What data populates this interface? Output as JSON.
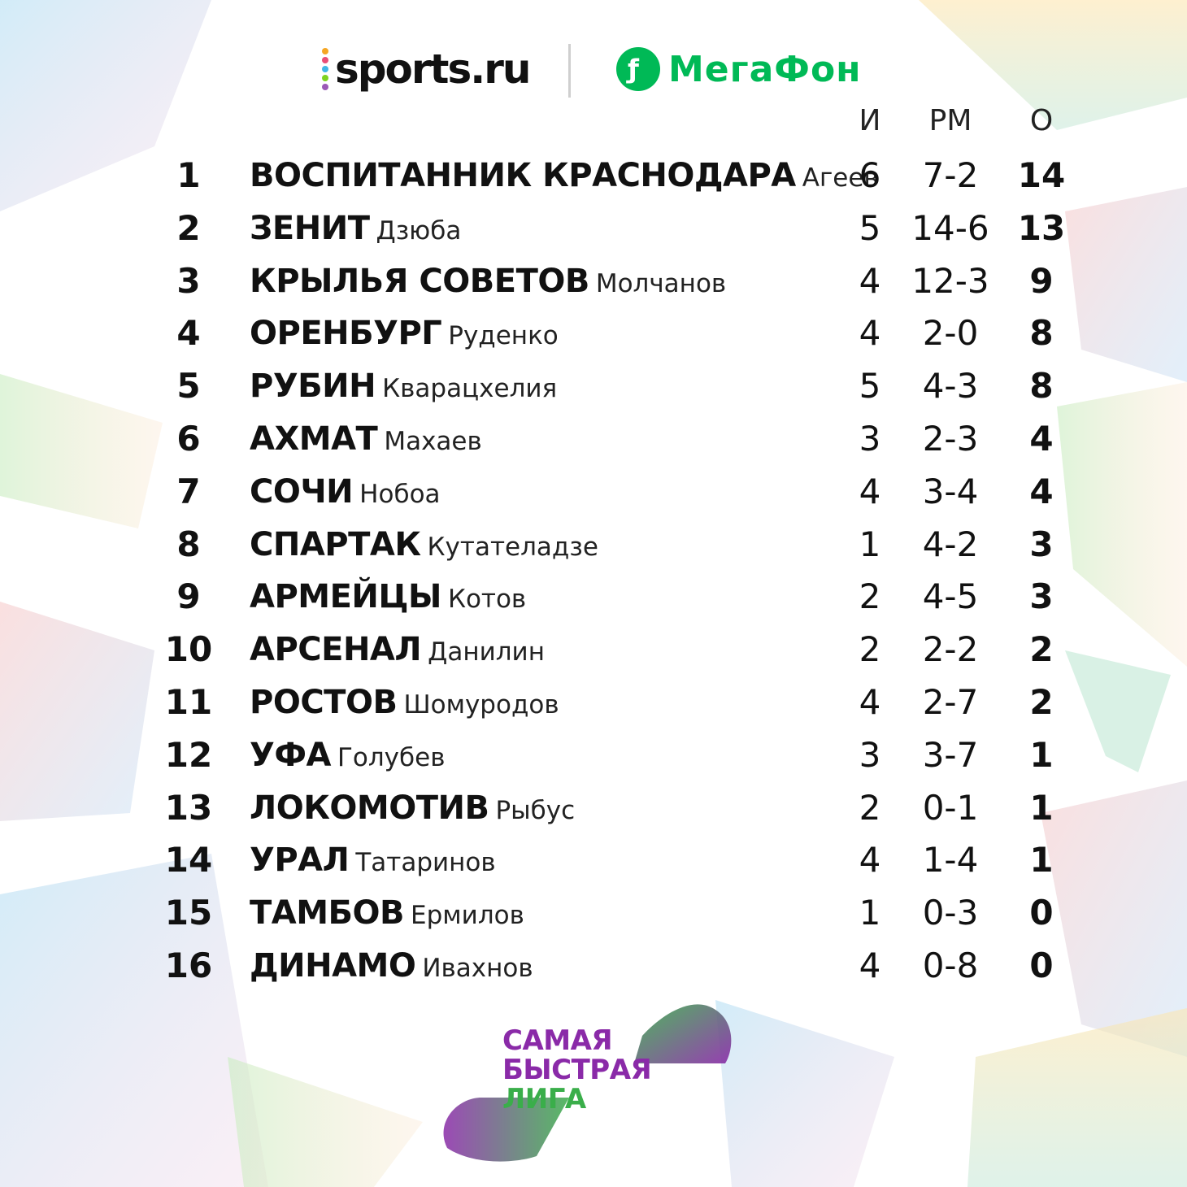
{
  "brand": {
    "sports_logo_text": "sports.ru",
    "sports_dot_colors": [
      "#f5a623",
      "#e94e77",
      "#41b6e6",
      "#7ed321",
      "#9b59b6"
    ],
    "megafon_text": "МегаФон",
    "megafon_color": "#00b956"
  },
  "table": {
    "headers": {
      "games": "И",
      "goals": "РМ",
      "points": "О"
    },
    "rows": [
      {
        "pos": "1",
        "club": "ВОСПИТАННИК КРАСНОДАРА",
        "coach": "Агеев",
        "games": "6",
        "goals": "7-2",
        "points": "14"
      },
      {
        "pos": "2",
        "club": "ЗЕНИТ",
        "coach": "Дзюба",
        "games": "5",
        "goals": "14-6",
        "points": "13"
      },
      {
        "pos": "3",
        "club": "КРЫЛЬЯ СОВЕТОВ",
        "coach": "Молчанов",
        "games": "4",
        "goals": "12-3",
        "points": "9"
      },
      {
        "pos": "4",
        "club": "ОРЕНБУРГ",
        "coach": "Руденко",
        "games": "4",
        "goals": "2-0",
        "points": "8"
      },
      {
        "pos": "5",
        "club": "РУБИН",
        "coach": "Кварацхелия",
        "games": "5",
        "goals": "4-3",
        "points": "8"
      },
      {
        "pos": "6",
        "club": "АХМАТ",
        "coach": "Махаев",
        "games": "3",
        "goals": "2-3",
        "points": "4"
      },
      {
        "pos": "7",
        "club": "СОЧИ",
        "coach": "Нобоа",
        "games": "4",
        "goals": "3-4",
        "points": "4"
      },
      {
        "pos": "8",
        "club": "СПАРТАК",
        "coach": "Кутателадзе",
        "games": "1",
        "goals": "4-2",
        "points": "3"
      },
      {
        "pos": "9",
        "club": "АРМЕЙЦЫ",
        "coach": "Котов",
        "games": "2",
        "goals": "4-5",
        "points": "3"
      },
      {
        "pos": "10",
        "club": "АРСЕНАЛ",
        "coach": "Данилин",
        "games": "2",
        "goals": "2-2",
        "points": "2"
      },
      {
        "pos": "11",
        "club": "РОСТОВ",
        "coach": "Шомуродов",
        "games": "4",
        "goals": "2-7",
        "points": "2"
      },
      {
        "pos": "12",
        "club": "УФА",
        "coach": "Голубев",
        "games": "3",
        "goals": "3-7",
        "points": "1"
      },
      {
        "pos": "13",
        "club": "ЛОКОМОТИВ",
        "coach": "Рыбус",
        "games": "2",
        "goals": "0-1",
        "points": "1"
      },
      {
        "pos": "14",
        "club": "УРАЛ",
        "coach": "Татаринов",
        "games": "4",
        "goals": "1-4",
        "points": "1"
      },
      {
        "pos": "15",
        "club": "ТАМБОВ",
        "coach": "Ермилов",
        "games": "1",
        "goals": "0-3",
        "points": "0"
      },
      {
        "pos": "16",
        "club": "ДИНАМО",
        "coach": "Ивахнов",
        "games": "4",
        "goals": "0-8",
        "points": "0"
      }
    ]
  },
  "league_logo": {
    "line1": "САМАЯ",
    "line2": "БЫСТРАЯ",
    "line3": "ЛИГА"
  },
  "colors": {
    "purple": "#8a2aa8",
    "green": "#3aae4a"
  }
}
